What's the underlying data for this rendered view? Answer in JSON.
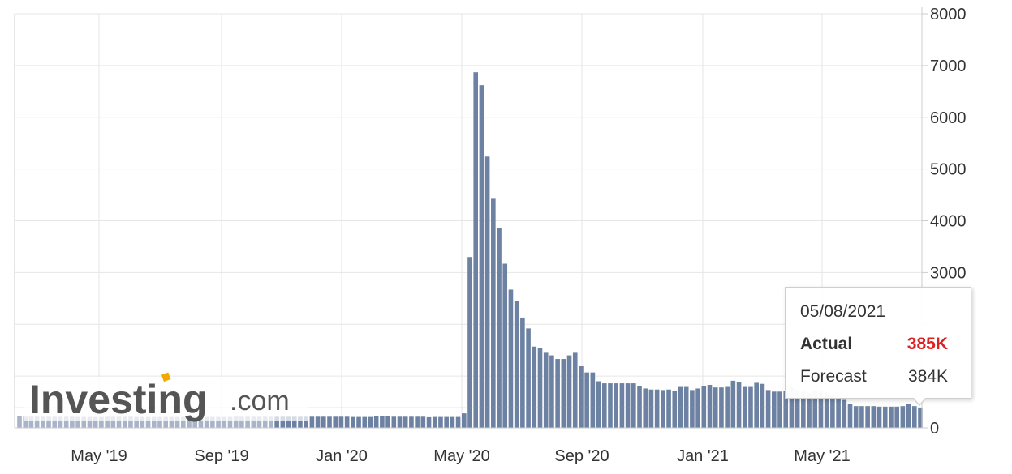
{
  "chart_data": {
    "type": "bar",
    "title": "",
    "xlabel": "",
    "ylabel": "",
    "ylim": [
      0,
      8000
    ],
    "y_ticks": [
      "0",
      "1000",
      "2000",
      "3000",
      "4000",
      "5000",
      "6000",
      "7000",
      "8000"
    ],
    "y_ticks_shown": [
      "0",
      "3000",
      "4000",
      "5000",
      "6000",
      "7000",
      "8000"
    ],
    "x_tick_labels": [
      "May '19",
      "Sep '19",
      "Jan '20",
      "May '20",
      "Sep '20",
      "Jan '21",
      "May '21"
    ],
    "grid": true,
    "axis_position": "right",
    "bar_color": "#6d82a3",
    "faded_bar_color": "#a9b4c8",
    "reference_line_color": "#7fa3c9",
    "reference_value": 385,
    "series": [
      {
        "values": [
          220,
          215,
          215,
          215,
          215,
          215,
          215,
          215,
          215,
          215,
          210,
          210,
          210,
          210,
          210,
          215,
          215,
          215,
          215,
          215,
          210,
          210,
          210,
          210,
          210,
          210,
          210,
          210,
          210,
          210,
          210,
          210,
          210,
          210,
          210,
          210,
          210,
          215,
          215,
          215,
          215,
          215,
          215,
          215,
          215,
          215,
          215,
          215,
          215,
          215,
          215,
          215,
          215,
          215,
          215,
          215,
          215,
          210,
          210,
          210,
          210,
          230,
          230,
          220,
          215,
          215,
          215,
          215,
          215,
          215,
          205,
          210,
          210,
          210,
          210,
          210,
          280,
          3300,
          6870,
          6620,
          5240,
          4440,
          3860,
          3170,
          2670,
          2450,
          2130,
          1920,
          1570,
          1540,
          1450,
          1400,
          1330,
          1330,
          1400,
          1450,
          1190,
          1070,
          1070,
          900,
          860,
          860,
          860,
          860,
          860,
          860,
          810,
          760,
          740,
          740,
          730,
          740,
          720,
          790,
          790,
          730,
          760,
          800,
          830,
          780,
          780,
          790,
          910,
          880,
          790,
          790,
          870,
          850,
          730,
          700,
          700,
          720,
          780,
          730,
          710,
          680,
          720,
          700,
          680,
          620,
          580,
          540,
          460,
          420,
          420,
          420,
          420,
          410,
          410,
          410,
          410,
          420,
          470,
          420,
          385
        ]
      }
    ],
    "tooltip": {
      "date": "05/08/2021",
      "actual_label": "Actual",
      "actual_value": "385K",
      "forecast_label": "Forecast",
      "forecast_value": "384K"
    }
  },
  "logo": {
    "main": "Investing",
    "suffix": ".com"
  },
  "colors": {
    "actual_value": "#e02020",
    "grid": "#e6e6e6",
    "axis_line": "#cccccc"
  }
}
